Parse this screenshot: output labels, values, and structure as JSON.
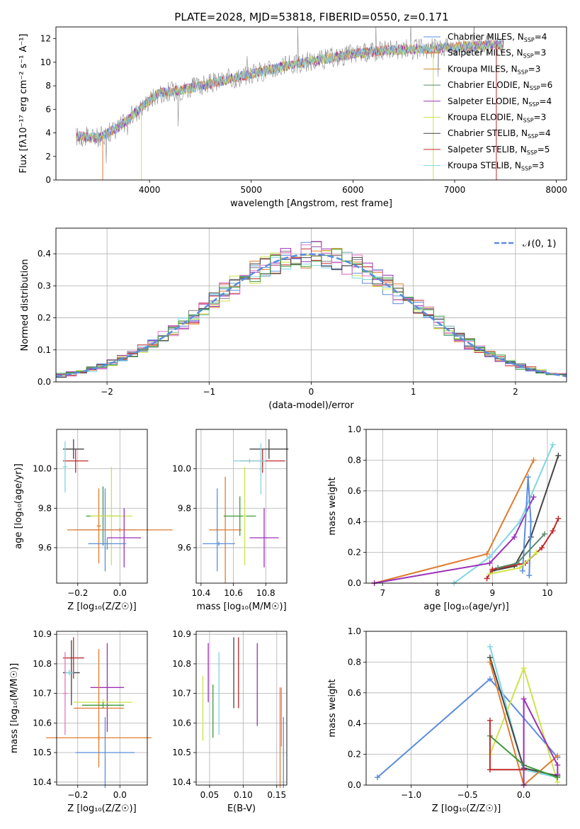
{
  "title": "PLATE=2028, MJD=53818, FIBERID=0550, z=0.171",
  "colors": [
    "#5c8cdc",
    "#e07b2e",
    "#3a9a3a",
    "#c0282a",
    "#9b30b8",
    "#8a5a44",
    "#e377c2",
    "#7f7f7f",
    "#cfe34a",
    "#7fd6e0"
  ],
  "chart_data": [
    {
      "id": "spectrum",
      "type": "line",
      "xlabel": "wavelength [Angstrom, rest frame]",
      "ylabel": "Flux [fλ10⁻¹⁷ erg cm⁻² s⁻¹ A⁻¹]",
      "xlim": [
        3080,
        8100
      ],
      "ylim": [
        0,
        13
      ],
      "xticks": [
        "4000",
        "5000",
        "6000",
        "7000",
        "8000"
      ],
      "yticks": [
        "0",
        "2",
        "4",
        "6",
        "8",
        "10",
        "12"
      ],
      "x_range_data": [
        3280,
        7480
      ],
      "continuum": {
        "x": [
          3280,
          3500,
          3700,
          3900,
          4000,
          4100,
          4300,
          4500,
          4700,
          5000,
          5300,
          5600,
          5800,
          6000,
          6300,
          6600,
          6800,
          7000,
          7200,
          7480
        ],
        "y": [
          3.7,
          3.6,
          4.5,
          6.0,
          6.8,
          7.4,
          7.6,
          8.0,
          8.4,
          9.0,
          9.6,
          10.1,
          10.4,
          10.7,
          11.0,
          11.1,
          11.2,
          11.3,
          11.4,
          11.5
        ]
      },
      "legend_location": "upper right",
      "legend": [
        "Chabrier MILES, N_SSP=4",
        "Salpeter MILES, N_SSP=3",
        "Kroupa MILES, N_SSP=3",
        "Chabrier ELODIE, N_SSP=6",
        "Salpeter ELODIE, N_SSP=4",
        "Kroupa ELODIE, N_SSP=3",
        "Chabrier STELIB, N_SSP=4",
        "Salpeter STELIB, N_SSP=5",
        "Kroupa STELIB, N_SSP=3"
      ],
      "legend_colors": [
        "#5c8cdc",
        "#e07b2e",
        "#d0822e",
        "#5a8a6a",
        "#9b30b8",
        "#cfe34a",
        "#444444",
        "#c0282a",
        "#7fd6e0"
      ]
    },
    {
      "id": "residuals",
      "type": "histogram",
      "xlabel": "(data-model)/error",
      "ylabel": "Normed distribution",
      "xlim": [
        -2.5,
        2.5
      ],
      "ylim": [
        0,
        0.48
      ],
      "xticks": [
        "−2",
        "−1",
        "0",
        "1",
        "2"
      ],
      "yticks": [
        "0.0",
        "0.1",
        "0.2",
        "0.3",
        "0.4"
      ],
      "bin_width": 0.1,
      "legend": "𝒩(0, 1)",
      "legend_location": "upper right",
      "grid": true
    },
    {
      "id": "age-vs-Z",
      "type": "errorbar",
      "xlabel": "Z [log₁₀(Z/Z☉)]",
      "ylabel": "age  [log₁₀(age/yr)]",
      "xlim": [
        -0.3,
        0.13
      ],
      "ylim": [
        9.42,
        10.2
      ],
      "xticks": [
        "−0.2",
        "0.0"
      ],
      "yticks": [
        "9.6",
        "9.8",
        "10.0"
      ],
      "points": [
        {
          "x": -0.22,
          "y": 10.1,
          "xerr": 0.05,
          "yerr": 0.05,
          "color": "#444444"
        },
        {
          "x": -0.21,
          "y": 10.04,
          "xerr": 0.06,
          "yerr": 0.06,
          "color": "#c0282a"
        },
        {
          "x": -0.26,
          "y": 10.01,
          "xerr": 0.01,
          "yerr": 0.13,
          "color": "#7fd6e0"
        },
        {
          "x": -0.07,
          "y": 9.69,
          "xerr": 0.15,
          "yerr": 0.21,
          "color": "#5c8cdc"
        },
        {
          "x": -0.1,
          "y": 9.71,
          "xerr": 0.01,
          "yerr": 0.19,
          "color": "#e07b2e"
        },
        {
          "x": -0.08,
          "y": 9.76,
          "xerr": 0.08,
          "yerr": 0.15,
          "color": "#3a9a3a"
        },
        {
          "x": -0.04,
          "y": 9.76,
          "xerr": 0.1,
          "yerr": 0.25,
          "color": "#cfe34a"
        },
        {
          "x": 0.0,
          "y": 9.69,
          "xerr": 0.25,
          "yerr": 0.01,
          "color": "#e07b2e"
        },
        {
          "x": 0.02,
          "y": 9.65,
          "xerr": 0.08,
          "yerr": 0.15,
          "color": "#9b30b8"
        },
        {
          "x": -0.06,
          "y": 9.62,
          "xerr": 0.09,
          "yerr": 0.03,
          "color": "#5c8cdc"
        }
      ]
    },
    {
      "id": "age-vs-mass",
      "type": "errorbar",
      "xlabel": "mass [log₁₀(M/M☉)]",
      "ylabel": "",
      "xlim": [
        10.37,
        10.93
      ],
      "ylim": [
        9.42,
        10.2
      ],
      "xticks": [
        "10.4",
        "10.6",
        "10.8"
      ],
      "yticks": [
        "9.6",
        "9.8",
        "10.0"
      ],
      "points": [
        {
          "x": 10.82,
          "y": 10.1,
          "xerr": 0.12,
          "yerr": 0.05,
          "color": "#444444"
        },
        {
          "x": 10.78,
          "y": 10.04,
          "xerr": 0.14,
          "yerr": 0.06,
          "color": "#c0282a"
        },
        {
          "x": 10.7,
          "y": 10.04,
          "xerr": 0.1,
          "yerr": 0.01,
          "color": "#7fd6e0"
        },
        {
          "x": 10.77,
          "y": 10.0,
          "xerr": 0.01,
          "yerr": 0.13,
          "color": "#7fd6e0"
        },
        {
          "x": 10.5,
          "y": 9.69,
          "xerr": 0.01,
          "yerr": 0.21,
          "color": "#5c8cdc"
        },
        {
          "x": 10.55,
          "y": 9.69,
          "xerr": 0.1,
          "yerr": 0.27,
          "color": "#e07b2e"
        },
        {
          "x": 10.64,
          "y": 9.76,
          "xerr": 0.1,
          "yerr": 0.1,
          "color": "#3a9a3a"
        },
        {
          "x": 10.67,
          "y": 9.76,
          "xerr": 0.01,
          "yerr": 0.25,
          "color": "#cfe34a"
        },
        {
          "x": 10.79,
          "y": 9.65,
          "xerr": 0.09,
          "yerr": 0.15,
          "color": "#9b30b8"
        },
        {
          "x": 10.51,
          "y": 9.62,
          "xerr": 0.1,
          "yerr": 0.01,
          "color": "#5c8cdc"
        }
      ]
    },
    {
      "id": "massweight-vs-age",
      "type": "line",
      "xlabel": "age  [log₁₀(age/yr)]",
      "ylabel": "mass weight",
      "xlim": [
        6.7,
        10.35
      ],
      "ylim": [
        0,
        1.0
      ],
      "xticks": [
        "7",
        "8",
        "9",
        "10"
      ],
      "yticks": [
        "0.0",
        "0.2",
        "0.4",
        "0.6",
        "0.8",
        "1.0"
      ],
      "grid": true,
      "series": [
        {
          "color": "#7fd6e0",
          "x": [
            8.3,
            8.95,
            9.5,
            10.1
          ],
          "y": [
            0.0,
            0.17,
            0.4,
            0.9
          ]
        },
        {
          "color": "#e07b2e",
          "x": [
            6.85,
            8.9,
            9.75
          ],
          "y": [
            0.0,
            0.19,
            0.8
          ]
        },
        {
          "color": "#444444",
          "x": [
            9.0,
            9.4,
            9.7,
            10.2
          ],
          "y": [
            0.08,
            0.11,
            0.3,
            0.83
          ]
        },
        {
          "color": "#c0282a",
          "x": [
            8.9,
            9.0,
            9.6,
            9.9,
            10.1,
            10.2
          ],
          "y": [
            0.03,
            0.09,
            0.13,
            0.23,
            0.34,
            0.42
          ]
        },
        {
          "color": "#9b30b8",
          "x": [
            6.85,
            8.95,
            9.4,
            9.75
          ],
          "y": [
            0.0,
            0.13,
            0.3,
            0.56
          ]
        },
        {
          "color": "#5c8cdc",
          "x": [
            9.55,
            9.65,
            9.7,
            9.67
          ],
          "y": [
            0.08,
            0.69,
            0.4,
            0.05
          ]
        },
        {
          "color": "#5a8a6a",
          "x": [
            9.1,
            9.45,
            9.95
          ],
          "y": [
            0.1,
            0.13,
            0.32
          ]
        },
        {
          "color": "#cfe34a",
          "x": [
            8.95,
            9.5,
            9.8
          ],
          "y": [
            0.06,
            0.1,
            0.2
          ]
        }
      ]
    },
    {
      "id": "mass-vs-Z",
      "type": "errorbar",
      "xlabel": "Z [log₁₀(Z/Z☉)]",
      "ylabel": "mass [log₁₀(M/M☉)]",
      "xlim": [
        -0.3,
        0.13
      ],
      "ylim": [
        10.39,
        10.91
      ],
      "xticks": [
        "−0.2",
        "0.0"
      ],
      "yticks": [
        "10.4",
        "10.5",
        "10.6",
        "10.7",
        "10.8",
        "10.9"
      ],
      "points": [
        {
          "x": -0.22,
          "y": 10.82,
          "xerr": 0.05,
          "yerr": 0.07,
          "color": "#c0282a"
        },
        {
          "x": -0.23,
          "y": 10.77,
          "xerr": 0.04,
          "yerr": 0.11,
          "color": "#444444"
        },
        {
          "x": -0.24,
          "y": 10.77,
          "xerr": 0.02,
          "yerr": 0.01,
          "color": "#7fd6e0"
        },
        {
          "x": -0.26,
          "y": 10.7,
          "xerr": 0.01,
          "yerr": 0.14,
          "color": "#e377c2"
        },
        {
          "x": -0.06,
          "y": 10.72,
          "xerr": 0.08,
          "yerr": 0.15,
          "color": "#9b30b8"
        },
        {
          "x": -0.08,
          "y": 10.67,
          "xerr": 0.14,
          "yerr": 0.01,
          "color": "#cfe34a"
        },
        {
          "x": -0.1,
          "y": 10.65,
          "xerr": 0.12,
          "yerr": 0.2,
          "color": "#e07b2e"
        },
        {
          "x": -0.08,
          "y": 10.66,
          "xerr": 0.1,
          "yerr": 0.01,
          "color": "#3a9a3a"
        },
        {
          "x": -0.1,
          "y": 10.55,
          "xerr": 0.25,
          "yerr": 0.01,
          "color": "#e07b2e"
        },
        {
          "x": -0.07,
          "y": 10.5,
          "xerr": 0.14,
          "yerr": 0.12,
          "color": "#5c8cdc"
        }
      ]
    },
    {
      "id": "mass-vs-ebv",
      "type": "errorbar",
      "xlabel": "E(B-V)",
      "ylabel": "",
      "xlim": [
        0.03,
        0.165
      ],
      "ylim": [
        10.39,
        10.91
      ],
      "xticks": [
        "0.05",
        "0.10",
        "0.15"
      ],
      "yticks": [
        "10.4",
        "10.5",
        "10.6",
        "10.7",
        "10.8",
        "10.9"
      ],
      "points": [
        {
          "x": 0.04,
          "y": 10.65,
          "yerr": 0.11,
          "color": "#cfe34a"
        },
        {
          "x": 0.048,
          "y": 10.77,
          "yerr": 0.1,
          "color": "#9b30b8"
        },
        {
          "x": 0.055,
          "y": 10.64,
          "yerr": 0.09,
          "color": "#3a9a3a"
        },
        {
          "x": 0.064,
          "y": 10.7,
          "yerr": 0.14,
          "color": "#7fd6e0"
        },
        {
          "x": 0.086,
          "y": 10.77,
          "yerr": 0.12,
          "color": "#444444"
        },
        {
          "x": 0.093,
          "y": 10.77,
          "yerr": 0.12,
          "color": "#c0282a"
        },
        {
          "x": 0.121,
          "y": 10.73,
          "yerr": 0.14,
          "color": "#9b30b8"
        },
        {
          "x": 0.155,
          "y": 10.55,
          "yerr": 0.17,
          "color": "#e07b2e"
        },
        {
          "x": 0.157,
          "y": 10.62,
          "yerr": 0.1,
          "color": "#e377c2"
        },
        {
          "x": 0.16,
          "y": 10.5,
          "yerr": 0.12,
          "color": "#5c8cdc"
        }
      ]
    },
    {
      "id": "massweight-vs-Z",
      "type": "line",
      "xlabel": "Z [log₁₀(Z/Z☉)]",
      "ylabel": "mass weight",
      "xlim": [
        -1.4,
        0.38
      ],
      "ylim": [
        0,
        1.0
      ],
      "xticks": [
        "−1.0",
        "−0.5",
        "0.0"
      ],
      "yticks": [
        "0.0",
        "0.2",
        "0.4",
        "0.6",
        "0.8",
        "1.0"
      ],
      "grid": true,
      "series": [
        {
          "color": "#5c8cdc",
          "x": [
            -1.3,
            -0.3,
            0.3
          ],
          "y": [
            0.05,
            0.69,
            0.18
          ]
        },
        {
          "color": "#7fd6e0",
          "x": [
            -0.3,
            0.0,
            0.3
          ],
          "y": [
            0.9,
            0.1,
            0.05
          ]
        },
        {
          "color": "#cfe34a",
          "x": [
            -0.3,
            0.0,
            0.3
          ],
          "y": [
            0.2,
            0.76,
            0.02
          ]
        },
        {
          "color": "#444444",
          "x": [
            -0.3,
            0.0,
            0.3
          ],
          "y": [
            0.83,
            0.11,
            0.06
          ]
        },
        {
          "color": "#e07b2e",
          "x": [
            -0.3,
            0.0,
            0.3
          ],
          "y": [
            0.8,
            0.0,
            0.19
          ]
        },
        {
          "color": "#3a9a3a",
          "x": [
            -0.3,
            0.0,
            0.3
          ],
          "y": [
            0.32,
            0.13,
            0.05
          ]
        },
        {
          "color": "#c0282a",
          "x": [
            -0.3,
            -0.3,
            0.0
          ],
          "y": [
            0.42,
            0.1,
            0.1
          ]
        },
        {
          "color": "#9b30b8",
          "x": [
            0.0,
            0.0,
            0.3,
            0.3
          ],
          "y": [
            0.0,
            0.56,
            0.13,
            0.07
          ]
        }
      ]
    }
  ]
}
